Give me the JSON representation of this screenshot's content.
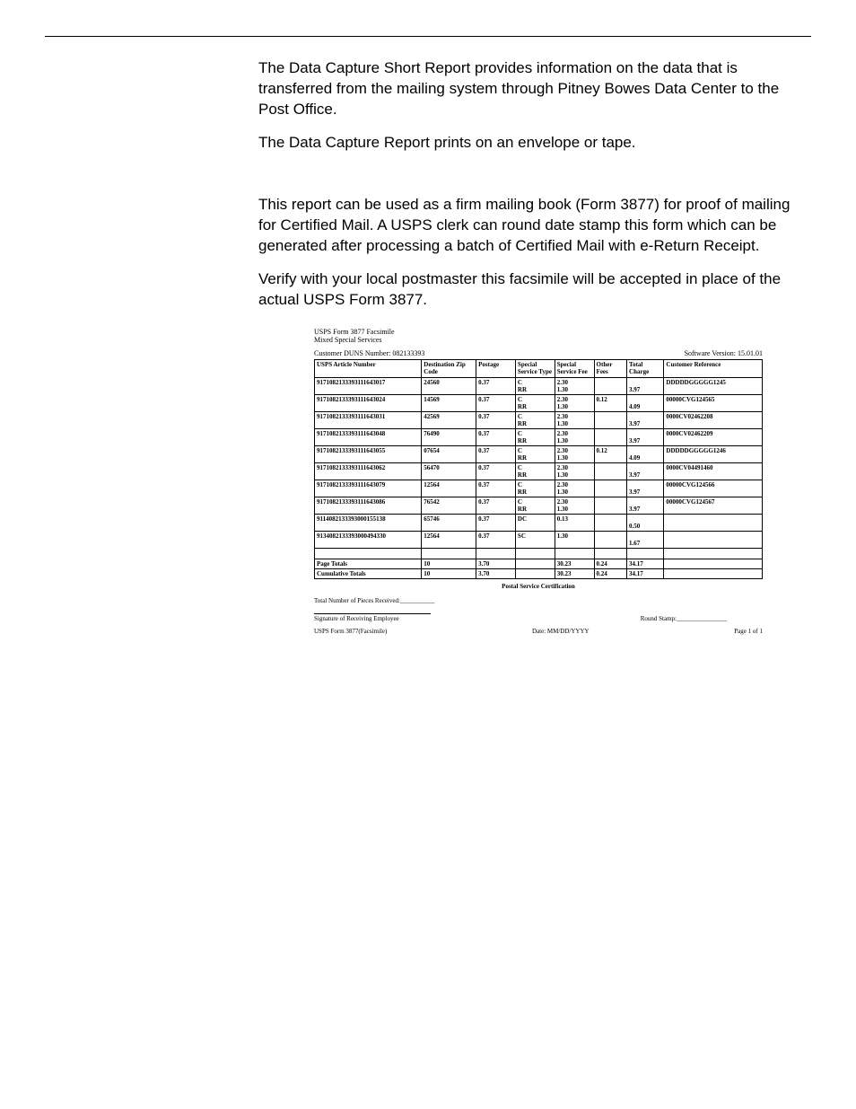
{
  "intro": {
    "p1": "The Data Capture Short Report provides information on the data that is transferred from the mailing system through Pitney Bowes Data Center to the Post Office.",
    "p2": "The Data Capture Report prints on an envelope or tape.",
    "p3": "This report can be used as a firm mailing book (Form 3877) for proof of mailing for Certified Mail. A USPS clerk can round date stamp this form which can be generated after processing a batch of Certified Mail with e-Return Receipt.",
    "p4": "Verify with your local postmaster this facsimile will be accepted in place of the actual USPS Form 3877."
  },
  "form": {
    "title1": "USPS Form 3877 Facsimile",
    "title2": "Mixed Special Services",
    "duns": "Customer DUNS Number: 082133393",
    "sw_version": "Software Version: 15.01.01",
    "columns": [
      "USPS Article Number",
      "Destination Zip Code",
      "Postage",
      "Special Service Type",
      "Special Service Fee",
      "Other Fees",
      "Total Charge",
      "Customer Reference"
    ],
    "rows": [
      {
        "article": "9171082133393111643017",
        "zip": "24560",
        "postage": "0.37",
        "sst": "C\nRR",
        "ssf": "2.30\n1.30",
        "other": "",
        "total": "3.97",
        "ref": "DDDDDGGGGG1245"
      },
      {
        "article": "9171082133393111643024",
        "zip": "14569",
        "postage": "0.37",
        "sst": "C\nRR",
        "ssf": "2.30\n1.30",
        "other": "0.12",
        "total": "4.09",
        "ref": "00000CVG124565"
      },
      {
        "article": "9171082133393111643031",
        "zip": "42569",
        "postage": "0.37",
        "sst": "C\nRR",
        "ssf": "2.30\n1.30",
        "other": "",
        "total": "3.97",
        "ref": "0000CV02462208"
      },
      {
        "article": "9171082133393111643048",
        "zip": "76490",
        "postage": "0.37",
        "sst": "C\nRR",
        "ssf": "2.30\n1.30",
        "other": "",
        "total": "3.97",
        "ref": "0000CV02462209"
      },
      {
        "article": "9171082133393111643055",
        "zip": "07654",
        "postage": "0.37",
        "sst": "C\nRR",
        "ssf": "2.30\n1.30",
        "other": "0.12",
        "total": "4.09",
        "ref": "DDDDDGGGGG1246"
      },
      {
        "article": "9171082133393111643062",
        "zip": "56470",
        "postage": "0.37",
        "sst": "C\nRR",
        "ssf": "2.30\n1.30",
        "other": "",
        "total": "3.97",
        "ref": "0000CV04491460"
      },
      {
        "article": "9171082133393111643079",
        "zip": "12564",
        "postage": "0.37",
        "sst": "C\nRR",
        "ssf": "2.30\n1.30",
        "other": "",
        "total": "3.97",
        "ref": "00000CVG124566"
      },
      {
        "article": "9171082133393111643086",
        "zip": "76542",
        "postage": "0.37",
        "sst": "C\nRR",
        "ssf": "2.30\n1.30",
        "other": "",
        "total": "3.97",
        "ref": "00000CVG124567"
      },
      {
        "article": "9114082133393000155138",
        "zip": "65746",
        "postage": "0.37",
        "sst": "DC",
        "ssf": "0.13",
        "other": "",
        "total": "0.50",
        "ref": ""
      },
      {
        "article": "9134082133393000494330",
        "zip": "12564",
        "postage": "0.37",
        "sst": "SC",
        "ssf": "1.30",
        "other": "",
        "total": "1.67",
        "ref": ""
      }
    ],
    "totals": {
      "page_label": "Page Totals",
      "cum_label": "Cumulative Totals",
      "count": "10",
      "postage": "3.70",
      "ssf": "30.23",
      "other": "0.24",
      "total": "34.17"
    },
    "cert": "Postal Service Certification",
    "pieces": "Total Number of Pieces Received:___________",
    "sig": "Signature of Receiving Employee",
    "stamp": "Round Stamp:________________",
    "form_id": "USPS Form 3877(Facsimile)",
    "date": "Date: MM/DD/YYYY",
    "page": "Page 1 of 1"
  }
}
